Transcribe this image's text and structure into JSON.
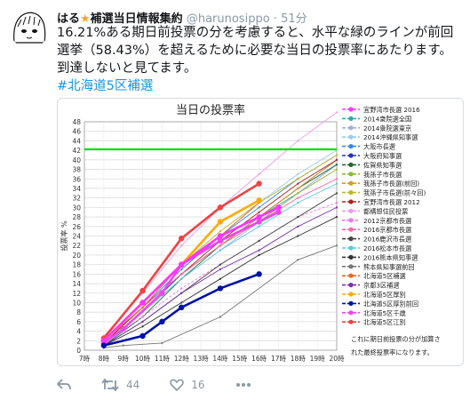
{
  "tweet": {
    "display_name": "はる",
    "star": "★",
    "name_suffix": "補選当日情報集約",
    "handle": "@harunosippo",
    "time": "51分",
    "text": "16.21%ある期日前投票の分を考慮すると、水平な緑のラインが前回選挙（58.43%）を超えるために必要な当日の投票率にあたります。到達しないと見てます。",
    "hashtag": "#北海道5区補選"
  },
  "actions": {
    "retweet_count": "44",
    "like_count": "16"
  },
  "colors": {
    "accent": "#1b95e0",
    "muted": "#8899a6",
    "threshold_line": "#00dd00"
  },
  "icons": [
    "avatar",
    "reply-icon",
    "retweet-icon",
    "like-icon",
    "more-icon"
  ],
  "chart_data": {
    "type": "line",
    "title": "当日の投票率",
    "ylabel": "投票率 %",
    "xlabel": "",
    "x_ticks": [
      "7時",
      "8時",
      "9時",
      "10時",
      "11時",
      "12時",
      "13時",
      "14時",
      "15時",
      "16時",
      "17時",
      "18時",
      "19時",
      "20時"
    ],
    "xlim": [
      7,
      20
    ],
    "ylim": [
      0,
      48
    ],
    "y_ticks": [
      0,
      2,
      4,
      6,
      8,
      10,
      12,
      14,
      16,
      18,
      20,
      22,
      24,
      26,
      28,
      30,
      32,
      34,
      36,
      38,
      40,
      42,
      44,
      46,
      48
    ],
    "grid": true,
    "legend_position": "right",
    "threshold": {
      "value": 42.22,
      "color": "#00dd00"
    },
    "series": [
      {
        "name": "宜野湾市長選 2016",
        "color": "#ff33ff",
        "dash": "",
        "x": [
          8,
          10,
          12,
          14,
          16,
          17
        ],
        "y": [
          2,
          10,
          18,
          24,
          28,
          30
        ]
      },
      {
        "name": "2014衆院選全国",
        "color": "#33aaaa",
        "dash": "",
        "x": [
          8,
          10,
          12,
          14,
          16,
          18,
          20
        ],
        "y": [
          1.5,
          8,
          16,
          22,
          28,
          33,
          39
        ]
      },
      {
        "name": "2014衆院選東京",
        "color": "#aaaadd",
        "dash": "",
        "x": [
          8,
          10,
          12,
          14,
          16,
          18,
          20
        ],
        "y": [
          1.5,
          8,
          15,
          21,
          27,
          33,
          39
        ]
      },
      {
        "name": "2014沖縄県知事選",
        "color": "#99ccee",
        "dash": "",
        "x": [
          8,
          10,
          12,
          14,
          16,
          18,
          20
        ],
        "y": [
          2,
          9,
          17,
          24,
          31,
          37,
          42
        ]
      },
      {
        "name": "大阪市長選",
        "color": "#3388ee",
        "dash": "",
        "x": [
          8,
          10,
          12,
          14,
          16,
          18,
          20
        ],
        "y": [
          1.5,
          9,
          17,
          24,
          30,
          36,
          41
        ]
      },
      {
        "name": "大阪府知事選",
        "color": "#2233bb",
        "dash": "",
        "x": [
          8,
          10,
          12,
          14,
          16,
          18,
          20
        ],
        "y": [
          1.5,
          8,
          16,
          22,
          28,
          34,
          40
        ]
      },
      {
        "name": "佐賀県知事選",
        "color": "#226633",
        "dash": "",
        "x": [
          8,
          10,
          12,
          14,
          16,
          18,
          20
        ],
        "y": [
          1,
          7,
          15,
          22,
          28,
          34,
          39
        ]
      },
      {
        "name": "我孫子市長選",
        "color": "#88bb33",
        "dash": "",
        "x": [
          8,
          10,
          12,
          14,
          16,
          18,
          20
        ],
        "y": [
          1.5,
          9,
          16,
          22,
          27,
          33,
          38
        ]
      },
      {
        "name": "我孫子市長選(前回)",
        "color": "#dd9922",
        "dash": "",
        "x": [
          8,
          10,
          12,
          14,
          16,
          18,
          20
        ],
        "y": [
          1.5,
          9,
          16,
          22,
          28,
          34,
          40
        ]
      },
      {
        "name": "我孫子市長選(前々回)",
        "color": "#bbbb22",
        "dash": "",
        "x": [
          8,
          10,
          12,
          14,
          16,
          18,
          20
        ],
        "y": [
          2,
          10,
          18,
          25,
          31,
          36,
          41
        ]
      },
      {
        "name": "宜野湾市長選 2012",
        "color": "#aa2222",
        "dash": "",
        "x": [
          8,
          10,
          12,
          14,
          16,
          18,
          20
        ],
        "y": [
          1.5,
          9,
          16,
          23,
          29,
          35,
          40
        ]
      },
      {
        "name": "都構想住民投票",
        "color": "#ee99ee",
        "dash": "",
        "x": [
          8,
          10,
          12,
          14,
          16,
          18,
          20
        ],
        "y": [
          3,
          12,
          22,
          30,
          37,
          44,
          50
        ]
      },
      {
        "name": "2012京都市長選",
        "color": "#ee77ee",
        "dash": "3,2",
        "x": [
          8,
          10,
          12,
          14,
          16,
          18,
          20
        ],
        "y": [
          1.5,
          7,
          13,
          18,
          23,
          28,
          31
        ]
      },
      {
        "name": "2016京都市長選",
        "color": "#ff66aa",
        "dash": "",
        "x": [
          8,
          10,
          12,
          14,
          16,
          18,
          20
        ],
        "y": [
          2,
          9,
          16,
          22,
          27,
          32,
          36
        ]
      },
      {
        "name": "2016鹿沢市長選",
        "color": "#444444",
        "dash": "",
        "x": [
          8,
          10,
          12,
          14,
          16,
          18,
          20
        ],
        "y": [
          1,
          6,
          12,
          18,
          23,
          28,
          33
        ]
      },
      {
        "name": "2016松本市長選",
        "color": "#55ccdd",
        "dash": "",
        "x": [
          8,
          10,
          12,
          14,
          16,
          18,
          20
        ],
        "y": [
          1.5,
          8,
          15,
          21,
          26,
          31,
          35
        ]
      },
      {
        "name": "2016熊本県知事選",
        "color": "#333333",
        "dash": "",
        "x": [
          8,
          10,
          12,
          14,
          16,
          18,
          20
        ],
        "y": [
          1,
          5,
          10,
          15,
          20,
          24,
          28
        ]
      },
      {
        "name": "熊本県知事選前回",
        "color": "#777777",
        "dash": "",
        "x": [
          8,
          9,
          11,
          14,
          18,
          20
        ],
        "y": [
          0.5,
          1,
          1.5,
          7,
          19,
          22
        ]
      },
      {
        "name": "北海道5区補選",
        "color": "#ee6622",
        "dash": "",
        "x": [
          8,
          10,
          12,
          14,
          16
        ],
        "y": [
          2,
          9,
          18,
          24,
          31
        ]
      },
      {
        "name": "京都3区補選",
        "color": "#7733aa",
        "dash": "",
        "x": [
          8,
          10,
          12,
          14,
          16,
          18,
          20
        ],
        "y": [
          1,
          6,
          12,
          17,
          21,
          26,
          30
        ]
      },
      {
        "name": "北海道5区厚別",
        "color": "#ffaa00",
        "dash": "",
        "x": [
          8,
          10,
          12,
          14,
          16
        ],
        "y": [
          2,
          10,
          18,
          27,
          31.5
        ]
      },
      {
        "name": "北海道5区厚別前回",
        "color": "#0011aa",
        "dash": "",
        "x": [
          8,
          10,
          11,
          12,
          14,
          16
        ],
        "y": [
          1,
          3,
          6,
          9,
          13,
          16
        ]
      },
      {
        "name": "北海道5区千歳",
        "color": "#ee44ee",
        "dash": "",
        "x": [
          8,
          9,
          11,
          12,
          14,
          16,
          17
        ],
        "y": [
          1.5,
          4.5,
          12,
          18,
          23,
          27,
          29
        ]
      },
      {
        "name": "北海道5区江別",
        "color": "#ee4444",
        "dash": "",
        "x": [
          8,
          10,
          12,
          14,
          16
        ],
        "y": [
          2.5,
          12.5,
          23.5,
          30,
          35
        ]
      }
    ],
    "highlighted": [
      {
        "index": 23,
        "markers": "circle"
      },
      {
        "index": 20,
        "markers": "circle"
      },
      {
        "index": 22,
        "markers": "circle"
      },
      {
        "index": 0,
        "markers": "circle"
      },
      {
        "index": 21,
        "markers": "circle"
      }
    ],
    "annotation": "これに期日前投票の分が加算された最終投票率になります。"
  }
}
